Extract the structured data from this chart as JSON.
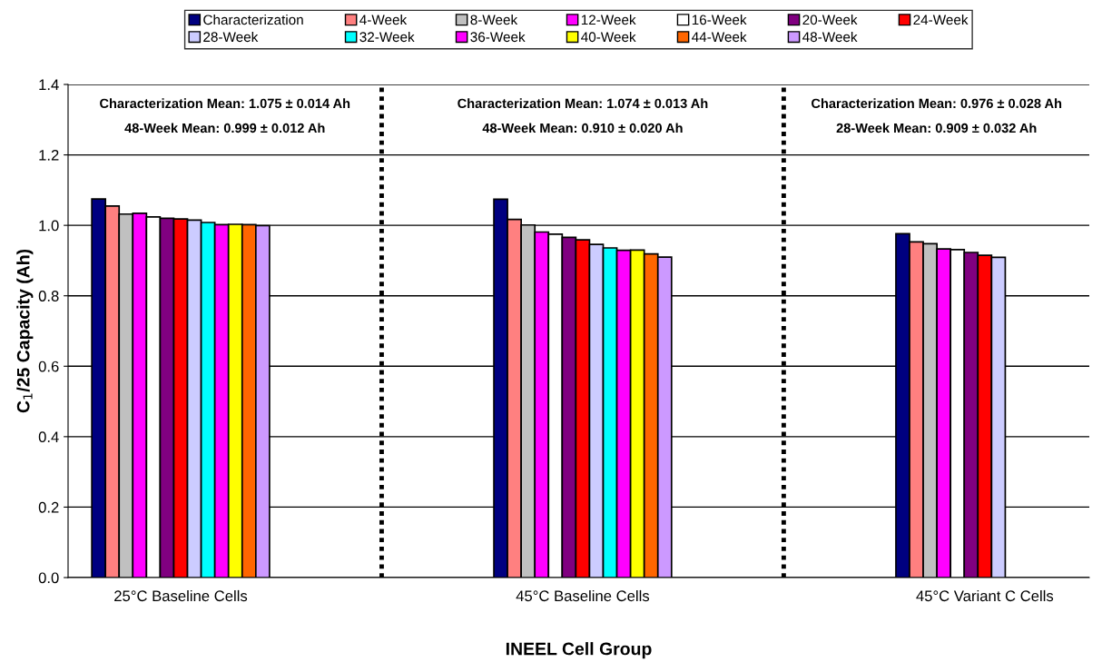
{
  "chart_data": {
    "type": "bar",
    "xlabel": "INEEL Cell Group",
    "ylabel": "C$_{1}$/25 Capacity (Ah)",
    "categories": [
      "25°C Baseline Cells",
      "45°C Baseline Cells",
      "45°C Variant C Cells"
    ],
    "series": [
      {
        "name": "Characterization",
        "color": "#000080",
        "values": [
          1.075,
          1.074,
          0.976
        ]
      },
      {
        "name": "4-Week",
        "color": "#ff8080",
        "values": [
          1.055,
          1.017,
          0.953
        ]
      },
      {
        "name": "8-Week",
        "color": "#c0c0c0",
        "values": [
          1.032,
          1.001,
          0.948
        ]
      },
      {
        "name": "12-Week",
        "color": "#ff00ff",
        "values": [
          1.034,
          0.981,
          0.933
        ]
      },
      {
        "name": "16-Week",
        "color": "#ffffff",
        "values": [
          1.024,
          0.975,
          0.931
        ]
      },
      {
        "name": "20-Week",
        "color": "#800080",
        "values": [
          1.02,
          0.966,
          0.923
        ]
      },
      {
        "name": "24-Week",
        "color": "#ff0000",
        "values": [
          1.018,
          0.959,
          0.915
        ]
      },
      {
        "name": "28-Week",
        "color": "#ccccff",
        "values": [
          1.015,
          0.946,
          0.909
        ]
      },
      {
        "name": "32-Week",
        "color": "#00ffff",
        "values": [
          1.008,
          0.936,
          null
        ]
      },
      {
        "name": "36-Week",
        "color": "#ff00ff",
        "values": [
          1.002,
          0.929,
          null
        ]
      },
      {
        "name": "40-Week",
        "color": "#ffff00",
        "values": [
          1.003,
          0.93,
          null
        ]
      },
      {
        "name": "44-Week",
        "color": "#ff6600",
        "values": [
          1.002,
          0.919,
          null
        ]
      },
      {
        "name": "48-Week",
        "color": "#cc99ff",
        "values": [
          0.999,
          0.91,
          null
        ]
      }
    ],
    "ylim": [
      0,
      1.4
    ],
    "yticks": [
      {
        "value": 0,
        "label": "0.0"
      },
      {
        "value": 0.2,
        "label": "0.2"
      },
      {
        "value": 0.4,
        "label": "0.4"
      },
      {
        "value": 0.6,
        "label": "0.6"
      },
      {
        "value": 0.8,
        "label": "0.8"
      },
      {
        "value": 1.0,
        "label": "1.0"
      },
      {
        "value": 1.2,
        "label": "1.2"
      },
      {
        "value": 1.4,
        "label": "1.4"
      }
    ],
    "grid": "y",
    "legend": "top",
    "annotations": [
      "Characterization Mean: 1.075 ± 0.014 Ah",
      "48-Week Mean: 0.999 ± 0.012 Ah",
      "Characterization Mean: 1.074 ± 0.013 Ah",
      "48-Week Mean: 0.910 ± 0.020 Ah",
      "Characterization Mean: 0.976 ± 0.028 Ah",
      "28-Week Mean: 0.909 ± 0.032 Ah"
    ]
  }
}
